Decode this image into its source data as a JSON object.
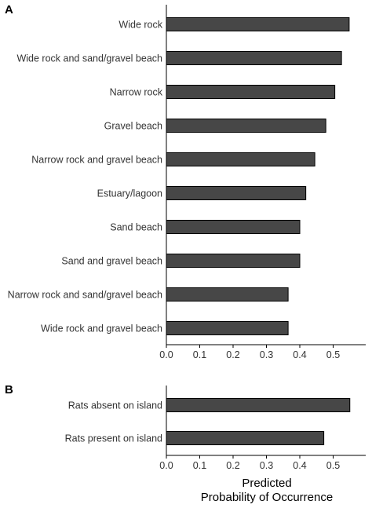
{
  "chart_data": [
    {
      "type": "bar",
      "orientation": "horizontal",
      "panel_label": "A",
      "categories": [
        "Wide rock",
        "Wide rock and sand/gravel beach",
        "Narrow rock",
        "Gravel beach",
        "Narrow rock and gravel beach",
        "Estuary/lagoon",
        "Sand beach",
        "Sand and gravel beach",
        "Narrow rock and sand/gravel beach",
        "Wide rock and gravel beach"
      ],
      "values": [
        0.548,
        0.525,
        0.505,
        0.478,
        0.445,
        0.418,
        0.4,
        0.4,
        0.365,
        0.365
      ],
      "xlim": [
        0,
        0.6
      ],
      "xticks": [
        0.0,
        0.1,
        0.2,
        0.3,
        0.4,
        0.5
      ],
      "xtick_labels": [
        "0.0",
        "0.1",
        "0.2",
        "0.3",
        "0.4",
        "0.5"
      ],
      "bar_color": "#474747",
      "grid": false
    },
    {
      "type": "bar",
      "orientation": "horizontal",
      "panel_label": "B",
      "categories": [
        "Rats absent on island",
        "Rats present on island"
      ],
      "values": [
        0.55,
        0.472
      ],
      "xlim": [
        0,
        0.6
      ],
      "xticks": [
        0.0,
        0.1,
        0.2,
        0.3,
        0.4,
        0.5
      ],
      "xtick_labels": [
        "0.0",
        "0.1",
        "0.2",
        "0.3",
        "0.4",
        "0.5"
      ],
      "xlabel": [
        "Predicted",
        "Probability of Occurrence"
      ],
      "bar_color": "#474747",
      "grid": false
    }
  ]
}
